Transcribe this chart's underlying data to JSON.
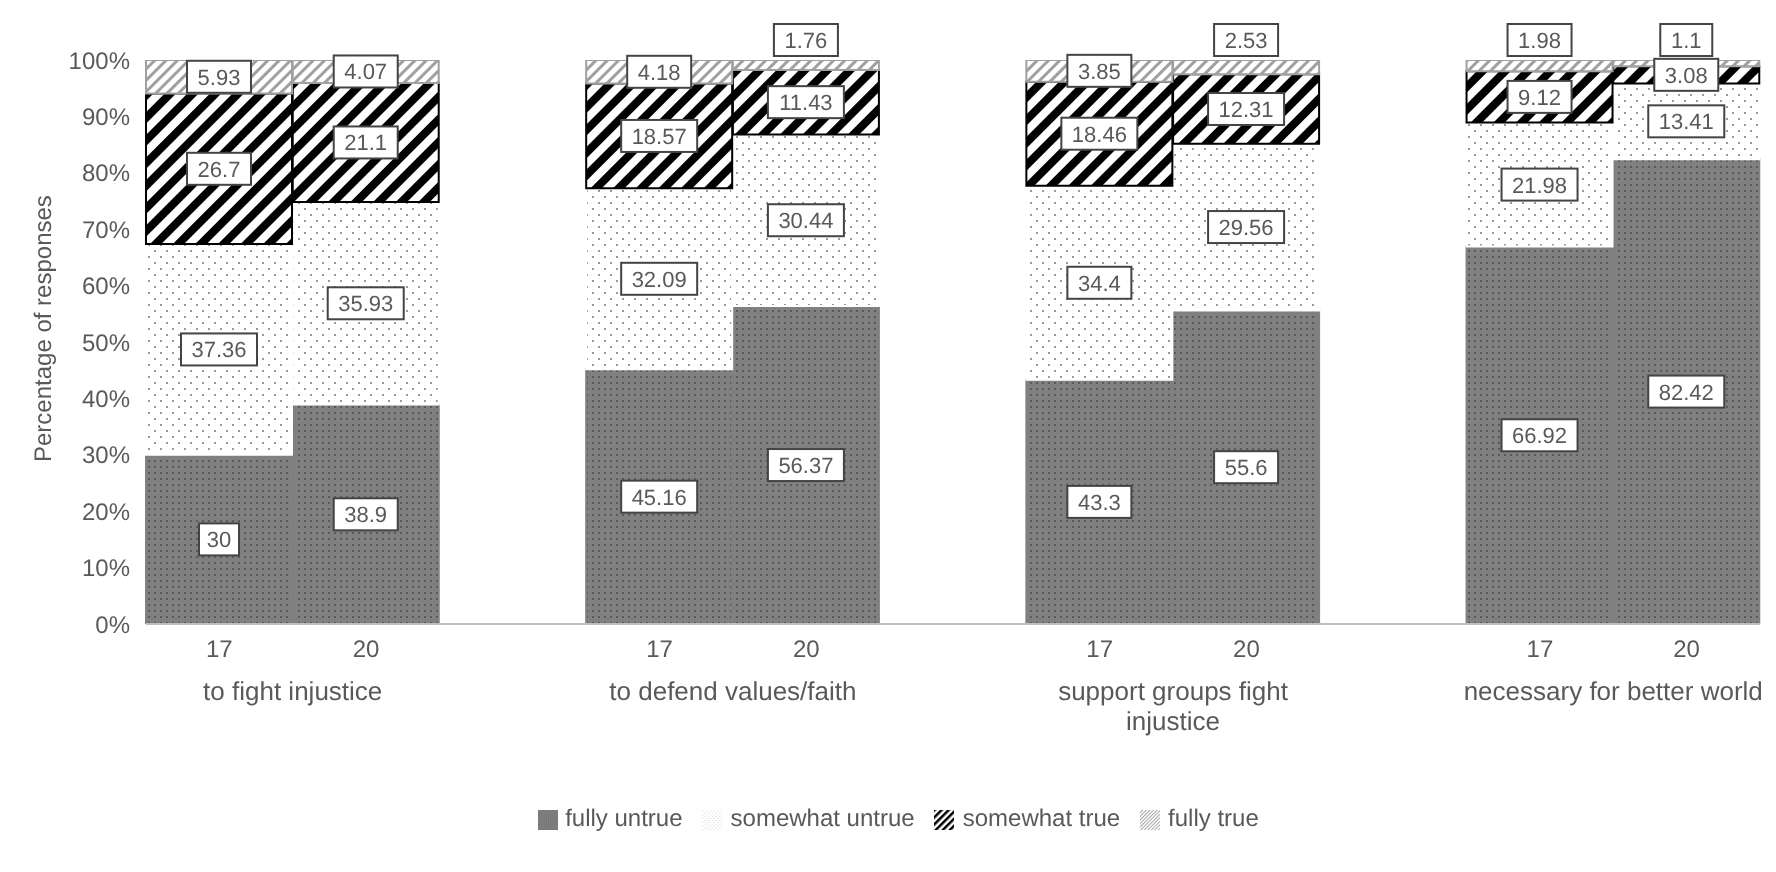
{
  "chart_data": {
    "type": "bar",
    "stacked": true,
    "ylabel": "Percentage of responses",
    "categories": [
      "17",
      "20",
      null,
      "17",
      "20",
      null,
      "17",
      "20",
      null,
      "17",
      "20"
    ],
    "series": [
      {
        "name": "fully untrue",
        "color": "#808080",
        "values": [
          30,
          38.9,
          null,
          45.16,
          56.37,
          null,
          43.3,
          55.6,
          null,
          66.92,
          82.42
        ]
      },
      {
        "name": "somewhat untrue",
        "color": "#ffffff",
        "values": [
          37.36,
          35.93,
          null,
          32.09,
          30.44,
          null,
          34.4,
          29.56,
          null,
          21.98,
          13.41
        ]
      },
      {
        "name": "somewhat true",
        "color": "#000000",
        "values": [
          26.7,
          21.1,
          null,
          18.57,
          11.43,
          null,
          18.46,
          12.31,
          null,
          9.12,
          3.08
        ]
      },
      {
        "name": "fully true",
        "color": "#a0a0a0",
        "values": [
          5.93,
          4.07,
          null,
          4.18,
          1.76,
          null,
          3.85,
          2.53,
          null,
          1.98,
          1.1
        ]
      }
    ],
    "annotations": [
      "to fight injustice",
      "to defend values/faith",
      "support groups fight injustice",
      "necessary for better world"
    ],
    "ylim": [
      0,
      100
    ],
    "yticks": [
      {
        "value": 0,
        "label": "0%"
      },
      {
        "value": 10,
        "label": "10%"
      },
      {
        "value": 20,
        "label": "20%"
      },
      {
        "value": 30,
        "label": "30%"
      },
      {
        "value": 40,
        "label": "40%"
      },
      {
        "value": 50,
        "label": "50%"
      },
      {
        "value": 60,
        "label": "60%"
      },
      {
        "value": 70,
        "label": "70%"
      },
      {
        "value": 80,
        "label": "80%"
      },
      {
        "value": 90,
        "label": "90%"
      },
      {
        "value": 100,
        "label": "100%"
      }
    ],
    "data_labels": true,
    "grid": false,
    "legend": "bottom"
  }
}
